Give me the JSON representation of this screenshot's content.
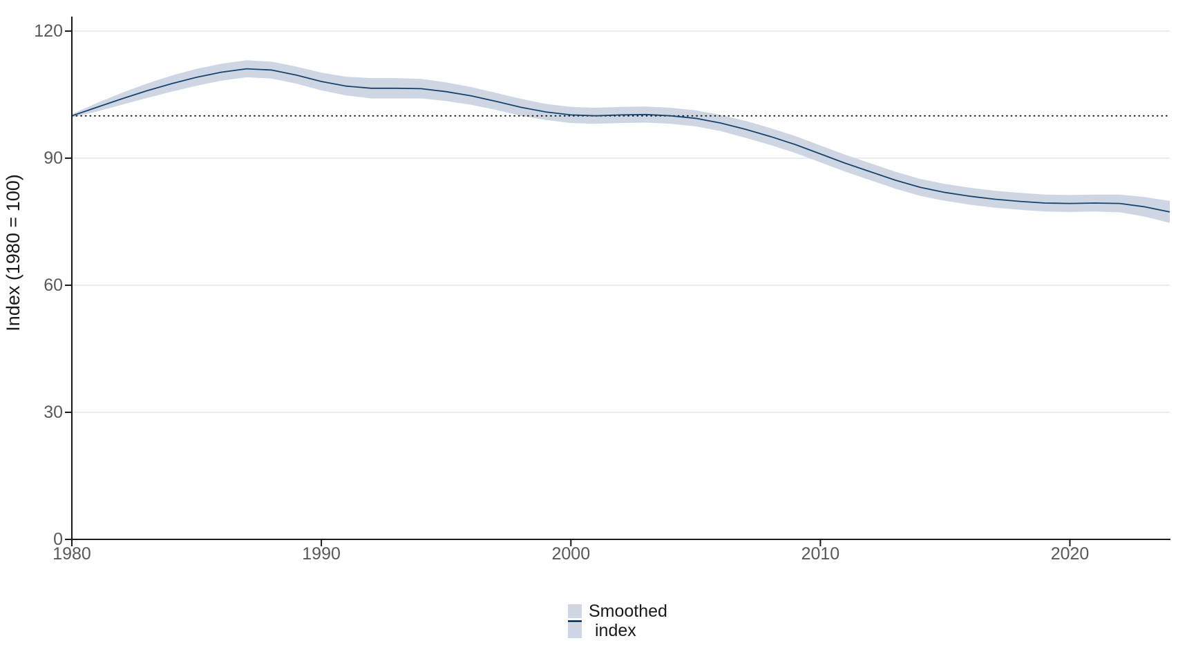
{
  "chart_data": {
    "type": "line",
    "title": "",
    "xlabel": "",
    "ylabel": "Index (1980 = 100)",
    "xlim": [
      1980,
      2024
    ],
    "ylim": [
      0,
      120
    ],
    "x_ticks": [
      "1980",
      "1990",
      "2000",
      "2010",
      "2020"
    ],
    "x_tick_values": [
      1980,
      1990,
      2000,
      2010,
      2020
    ],
    "y_ticks": [
      "0",
      "30",
      "60",
      "90",
      "120"
    ],
    "y_tick_values": [
      0,
      30,
      60,
      90,
      120
    ],
    "grid": "horizontal-major-only",
    "reference_line": {
      "y": 100,
      "style": "dotted",
      "color": "#1a1a1a"
    },
    "series": [
      {
        "name": "Smoothed index",
        "style": "smoothed-line-with-confidence-band",
        "line_color": "#17436e",
        "band_color": "#cdd6e2",
        "x": [
          1980,
          1981,
          1982,
          1983,
          1984,
          1985,
          1986,
          1987,
          1988,
          1989,
          1990,
          1991,
          1992,
          1993,
          1994,
          1995,
          1996,
          1997,
          1998,
          1999,
          2000,
          2001,
          2002,
          2003,
          2004,
          2005,
          2006,
          2007,
          2008,
          2009,
          2010,
          2011,
          2012,
          2013,
          2014,
          2015,
          2016,
          2017,
          2018,
          2019,
          2020,
          2021,
          2022,
          2023,
          2024
        ],
        "y": [
          100.0,
          102.0,
          104.0,
          105.9,
          107.6,
          109.1,
          110.3,
          111.1,
          110.8,
          109.6,
          108.1,
          107.0,
          106.5,
          106.5,
          106.4,
          105.7,
          104.7,
          103.4,
          102.0,
          100.9,
          100.2,
          100.0,
          100.2,
          100.3,
          100.0,
          99.4,
          98.3,
          96.8,
          95.1,
          93.2,
          91.0,
          88.8,
          86.8,
          84.8,
          83.1,
          81.9,
          81.0,
          80.3,
          79.8,
          79.4,
          79.3,
          79.4,
          79.3,
          78.5,
          77.3
        ],
        "band_low": [
          99.6,
          101.0,
          102.6,
          104.2,
          105.7,
          107.1,
          108.3,
          109.1,
          108.8,
          107.6,
          106.0,
          104.8,
          104.1,
          104.1,
          104.1,
          103.5,
          102.6,
          101.4,
          100.0,
          99.0,
          98.3,
          98.1,
          98.3,
          98.4,
          98.1,
          97.5,
          96.4,
          94.8,
          93.1,
          91.2,
          89.0,
          86.8,
          84.8,
          82.8,
          81.1,
          79.9,
          79.0,
          78.3,
          77.8,
          77.4,
          77.3,
          77.4,
          77.2,
          76.2,
          74.7
        ],
        "band_high": [
          100.4,
          103.0,
          105.4,
          107.6,
          109.5,
          111.1,
          112.3,
          113.1,
          112.8,
          111.6,
          110.2,
          109.2,
          108.9,
          108.9,
          108.7,
          107.9,
          106.8,
          105.4,
          104.0,
          102.8,
          102.1,
          101.9,
          102.1,
          102.2,
          101.9,
          101.3,
          100.2,
          98.8,
          97.1,
          95.2,
          93.0,
          90.8,
          88.8,
          86.8,
          85.1,
          83.9,
          83.0,
          82.3,
          81.8,
          81.4,
          81.3,
          81.4,
          81.4,
          80.8,
          79.9
        ]
      }
    ],
    "legend": {
      "position": "bottom-center",
      "entries": [
        {
          "label": "Smoothed index",
          "label_lines": [
            "Smoothed",
            "index"
          ],
          "swatch": "band-with-line"
        }
      ]
    },
    "colors": {
      "axis": "#1a1a1a",
      "tick_label": "#595959",
      "axis_title": "#1a1a1a",
      "grid": "#ececec",
      "background": "#ffffff"
    }
  }
}
